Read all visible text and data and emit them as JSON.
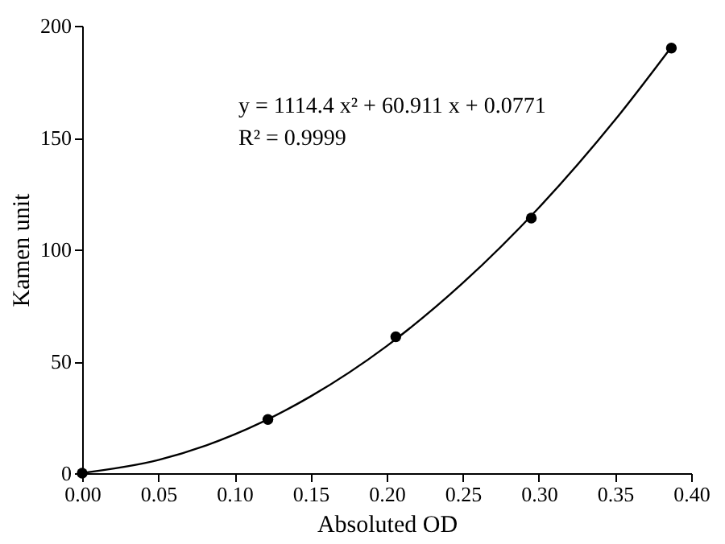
{
  "chart_data": {
    "type": "scatter",
    "xlabel": "Absoluted OD",
    "ylabel": "Kamen unit",
    "annotations": [
      "y = 1114.4 x² + 60.911 x + 0.0771",
      "R² = 0.9999"
    ],
    "xlim": [
      0,
      0.4
    ],
    "xticks": [
      {
        "value": 0,
        "label": "0.00"
      },
      {
        "value": 0.05,
        "label": "0.05"
      },
      {
        "value": 0.1,
        "label": "0.10"
      },
      {
        "value": 0.15,
        "label": "0.15"
      },
      {
        "value": 0.2,
        "label": "0.20"
      },
      {
        "value": 0.25,
        "label": "0.25"
      },
      {
        "value": 0.3,
        "label": "0.30"
      },
      {
        "value": 0.35,
        "label": "0.35"
      },
      {
        "value": 0.4,
        "label": "0.40"
      }
    ],
    "ylim": [
      0,
      200
    ],
    "yticks": [
      0,
      50,
      100,
      150,
      200
    ],
    "grid": false,
    "marker": "circle",
    "series": [
      {
        "color": "#000000",
        "x": [
          0,
          0.122,
          0.206,
          0.295,
          0.387
        ],
        "values": [
          0,
          24,
          61,
          114,
          190
        ]
      },
      {
        "type": "line",
        "color": "#000000",
        "marker": "none",
        "x": [
          0,
          0.05,
          0.1,
          0.15,
          0.2,
          0.25,
          0.3,
          0.35,
          0.387
        ],
        "values": [
          0.1,
          5.9,
          17.3,
          34.3,
          56.8,
          85.0,
          118.7,
          157.9,
          190.5
        ]
      }
    ]
  }
}
